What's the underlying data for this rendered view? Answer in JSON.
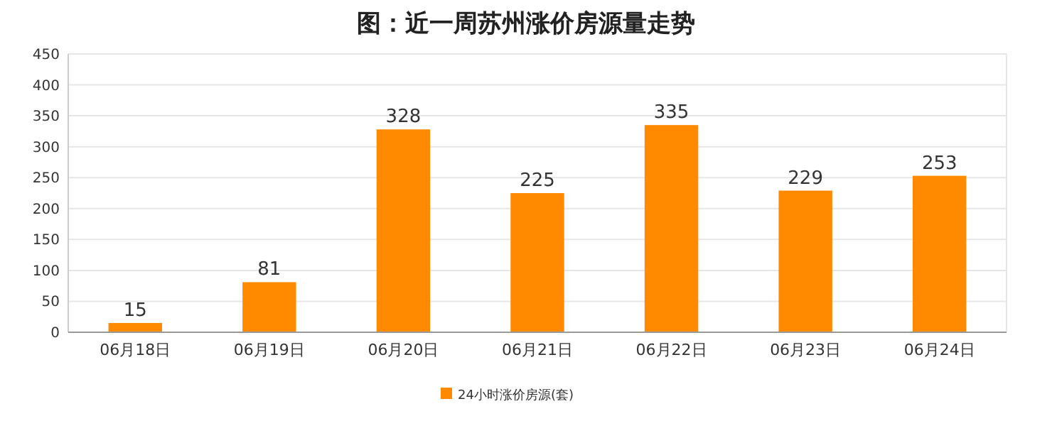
{
  "chart_data": {
    "type": "bar",
    "title": "图：近一周苏州涨价房源量走势",
    "categories": [
      "06月18日",
      "06月19日",
      "06月20日",
      "06月21日",
      "06月22日",
      "06月23日",
      "06月24日"
    ],
    "series": [
      {
        "name": "24小时涨价房源(套)",
        "color": "#ff8a00",
        "values": [
          15,
          81,
          328,
          225,
          335,
          229,
          253
        ]
      }
    ],
    "ylim": [
      0,
      450
    ],
    "yticks": [
      0,
      50,
      100,
      150,
      200,
      250,
      300,
      350,
      400,
      450
    ],
    "grid": "y",
    "legend": "bottom",
    "data_labels": true
  }
}
